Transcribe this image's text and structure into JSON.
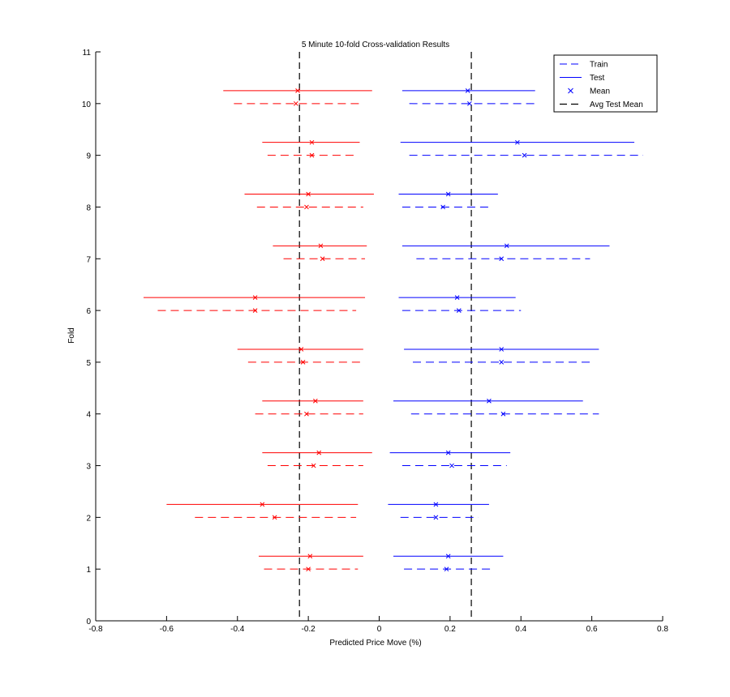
{
  "chart_data": {
    "type": "errorbar",
    "title": "5 Minute 10-fold Cross-validation Results",
    "xlabel": "Predicted Price Move (%)",
    "ylabel": "Fold",
    "xlim": [
      -0.8,
      0.8
    ],
    "ylim": [
      0,
      11
    ],
    "xticks": [
      "-0.8",
      "-0.6",
      "-0.4",
      "-0.2",
      "0",
      "0.2",
      "0.4",
      "0.6",
      "0.8"
    ],
    "yticks": [
      "0",
      "1",
      "2",
      "3",
      "4",
      "5",
      "6",
      "7",
      "8",
      "9",
      "10",
      "11"
    ],
    "colors": {
      "negative": "#ff0000",
      "positive": "#0000ff",
      "avg": "#000000"
    },
    "avg_test_means": [
      -0.225,
      0.26
    ],
    "legend": {
      "position": "top-right",
      "entries": [
        "Train",
        "Test",
        "Mean",
        "Avg Test Mean"
      ]
    },
    "series": [
      {
        "name": "Test",
        "style": "solid",
        "negative": [
          {
            "fold": 1,
            "low": -0.34,
            "high": -0.045,
            "mean": -0.195
          },
          {
            "fold": 2,
            "low": -0.6,
            "high": -0.06,
            "mean": -0.33
          },
          {
            "fold": 3,
            "low": -0.33,
            "high": -0.02,
            "mean": -0.17
          },
          {
            "fold": 4,
            "low": -0.33,
            "high": -0.045,
            "mean": -0.18
          },
          {
            "fold": 5,
            "low": -0.4,
            "high": -0.045,
            "mean": -0.22
          },
          {
            "fold": 6,
            "low": -0.665,
            "high": -0.04,
            "mean": -0.35
          },
          {
            "fold": 7,
            "low": -0.3,
            "high": -0.035,
            "mean": -0.165
          },
          {
            "fold": 8,
            "low": -0.38,
            "high": -0.015,
            "mean": -0.2
          },
          {
            "fold": 9,
            "low": -0.33,
            "high": -0.055,
            "mean": -0.19
          },
          {
            "fold": 10,
            "low": -0.44,
            "high": -0.02,
            "mean": -0.23
          }
        ],
        "positive": [
          {
            "fold": 1,
            "low": 0.04,
            "high": 0.35,
            "mean": 0.195
          },
          {
            "fold": 2,
            "low": 0.025,
            "high": 0.31,
            "mean": 0.16
          },
          {
            "fold": 3,
            "low": 0.03,
            "high": 0.37,
            "mean": 0.195
          },
          {
            "fold": 4,
            "low": 0.04,
            "high": 0.575,
            "mean": 0.31
          },
          {
            "fold": 5,
            "low": 0.07,
            "high": 0.62,
            "mean": 0.345
          },
          {
            "fold": 6,
            "low": 0.055,
            "high": 0.385,
            "mean": 0.22
          },
          {
            "fold": 7,
            "low": 0.065,
            "high": 0.65,
            "mean": 0.36
          },
          {
            "fold": 8,
            "low": 0.055,
            "high": 0.335,
            "mean": 0.195
          },
          {
            "fold": 9,
            "low": 0.06,
            "high": 0.72,
            "mean": 0.39
          },
          {
            "fold": 10,
            "low": 0.065,
            "high": 0.44,
            "mean": 0.25
          }
        ]
      },
      {
        "name": "Train",
        "style": "dashed",
        "negative": [
          {
            "fold": 1,
            "low": -0.325,
            "high": -0.06,
            "mean": -0.2
          },
          {
            "fold": 2,
            "low": -0.52,
            "high": -0.065,
            "mean": -0.295
          },
          {
            "fold": 3,
            "low": -0.315,
            "high": -0.045,
            "mean": -0.185
          },
          {
            "fold": 4,
            "low": -0.35,
            "high": -0.045,
            "mean": -0.205
          },
          {
            "fold": 5,
            "low": -0.37,
            "high": -0.05,
            "mean": -0.215
          },
          {
            "fold": 6,
            "low": -0.625,
            "high": -0.065,
            "mean": -0.35
          },
          {
            "fold": 7,
            "low": -0.27,
            "high": -0.04,
            "mean": -0.16
          },
          {
            "fold": 8,
            "low": -0.345,
            "high": -0.045,
            "mean": -0.205
          },
          {
            "fold": 9,
            "low": -0.315,
            "high": -0.06,
            "mean": -0.19
          },
          {
            "fold": 10,
            "low": -0.41,
            "high": -0.05,
            "mean": -0.235
          }
        ],
        "positive": [
          {
            "fold": 1,
            "low": 0.07,
            "high": 0.32,
            "mean": 0.19
          },
          {
            "fold": 2,
            "low": 0.06,
            "high": 0.28,
            "mean": 0.16
          },
          {
            "fold": 3,
            "low": 0.065,
            "high": 0.36,
            "mean": 0.205
          },
          {
            "fold": 4,
            "low": 0.09,
            "high": 0.62,
            "mean": 0.35
          },
          {
            "fold": 5,
            "low": 0.095,
            "high": 0.6,
            "mean": 0.345
          },
          {
            "fold": 6,
            "low": 0.065,
            "high": 0.4,
            "mean": 0.225
          },
          {
            "fold": 7,
            "low": 0.105,
            "high": 0.595,
            "mean": 0.345
          },
          {
            "fold": 8,
            "low": 0.065,
            "high": 0.31,
            "mean": 0.18
          },
          {
            "fold": 9,
            "low": 0.085,
            "high": 0.745,
            "mean": 0.41
          },
          {
            "fold": 10,
            "low": 0.085,
            "high": 0.44,
            "mean": 0.255
          }
        ]
      }
    ]
  }
}
